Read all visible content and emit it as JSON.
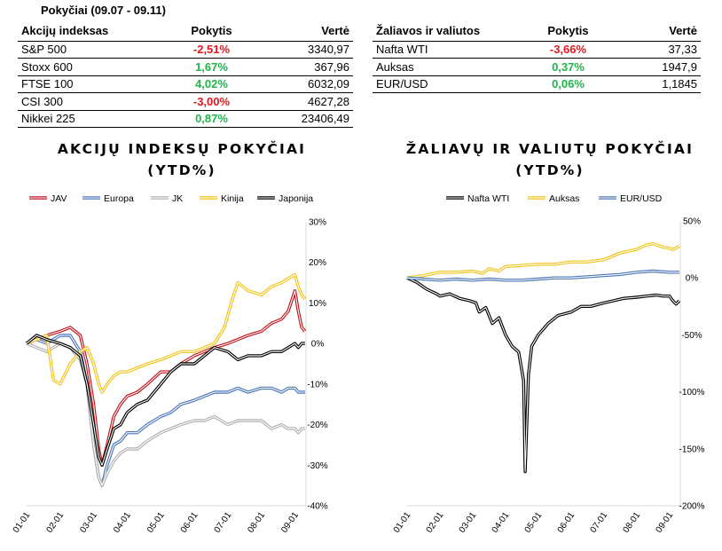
{
  "header": {
    "week_title": "Pokyčiai (09.07 - 09.11)"
  },
  "indices_table": {
    "headers": [
      "Akcijų indeksas",
      "Pokytis",
      "Vertė"
    ],
    "rows": [
      {
        "name": "S&P 500",
        "change": "-2,51%",
        "value": "3340,97",
        "sign": "neg"
      },
      {
        "name": "Stoxx 600",
        "change": "1,67%",
        "value": "367,96",
        "sign": "pos"
      },
      {
        "name": "FTSE 100",
        "change": "4,02%",
        "value": "6032,09",
        "sign": "pos"
      },
      {
        "name": "CSI 300",
        "change": "-3,00%",
        "value": "4627,28",
        "sign": "neg"
      },
      {
        "name": "Nikkei 225",
        "change": "0,87%",
        "value": "23406,49",
        "sign": "pos"
      }
    ]
  },
  "commodities_table": {
    "headers": [
      "Žaliavos ir valiutos",
      "Pokytis",
      "Vertė"
    ],
    "rows": [
      {
        "name": "Nafta WTI",
        "change": "-3,66%",
        "value": "37,33",
        "sign": "neg"
      },
      {
        "name": "Auksas",
        "change": "0,37%",
        "value": "1947,9",
        "sign": "pos"
      },
      {
        "name": "EUR/USD",
        "change": "0,06%",
        "value": "1,1845",
        "sign": "pos"
      }
    ]
  },
  "colors": {
    "negative": "#e8161f",
    "positive": "#1fb54a"
  },
  "chart_data": [
    {
      "type": "line",
      "title": "AKCIJŲ INDEKSŲ POKYČIAI",
      "subtitle": "(YTD%)",
      "legend_position": "top",
      "grid": false,
      "x_tick_labels": [
        "01-01",
        "02-01",
        "03-01",
        "04-01",
        "05-01",
        "06-01",
        "07-01",
        "08-01",
        "09-01"
      ],
      "x_range": [
        0,
        8.33
      ],
      "y_ticks": [
        30,
        20,
        10,
        0,
        -10,
        -20,
        -30,
        -40
      ],
      "y_tick_labels": [
        "30%",
        "20%",
        "10%",
        "0%",
        "-10%",
        "-20%",
        "-30%",
        "-40%"
      ],
      "ylim": [
        -40,
        30
      ],
      "series": [
        {
          "name": "JAV",
          "color": "#c0141c",
          "x": [
            0,
            0.3,
            0.6,
            1.0,
            1.3,
            1.6,
            1.8,
            2.0,
            2.15,
            2.25,
            2.4,
            2.6,
            2.8,
            3.0,
            3.3,
            3.6,
            4.0,
            4.3,
            4.6,
            5.0,
            5.3,
            5.6,
            6.0,
            6.3,
            6.6,
            7.0,
            7.3,
            7.6,
            7.8,
            8.0,
            8.1,
            8.2,
            8.3
          ],
          "y": [
            0,
            1,
            2,
            3,
            4,
            2,
            -5,
            -15,
            -26,
            -30,
            -25,
            -18,
            -15,
            -13,
            -12,
            -10,
            -7,
            -7,
            -5,
            -3,
            -2,
            -1,
            0,
            1,
            2,
            3,
            5,
            6,
            8,
            13,
            8,
            4,
            3
          ]
        },
        {
          "name": "Europa",
          "color": "#4a76b8",
          "x": [
            0,
            0.3,
            0.6,
            1.0,
            1.3,
            1.6,
            1.8,
            2.0,
            2.15,
            2.25,
            2.4,
            2.6,
            2.8,
            3.0,
            3.3,
            3.6,
            4.0,
            4.3,
            4.6,
            5.0,
            5.3,
            5.6,
            6.0,
            6.3,
            6.6,
            7.0,
            7.3,
            7.6,
            7.8,
            8.0,
            8.1,
            8.2,
            8.3
          ],
          "y": [
            0,
            1,
            0,
            2,
            2,
            -2,
            -10,
            -25,
            -33,
            -35,
            -30,
            -25,
            -24,
            -22,
            -22,
            -20,
            -18,
            -17,
            -15,
            -14,
            -13,
            -12,
            -12,
            -11,
            -12,
            -11,
            -11,
            -12,
            -11,
            -11,
            -12,
            -12,
            -12
          ]
        },
        {
          "name": "JK",
          "color": "#b0b0b0",
          "x": [
            0,
            0.3,
            0.6,
            1.0,
            1.3,
            1.6,
            1.8,
            2.0,
            2.15,
            2.25,
            2.4,
            2.6,
            2.8,
            3.0,
            3.3,
            3.6,
            4.0,
            4.3,
            4.6,
            5.0,
            5.3,
            5.6,
            6.0,
            6.3,
            6.6,
            7.0,
            7.3,
            7.6,
            7.8,
            8.0,
            8.1,
            8.2,
            8.3
          ],
          "y": [
            0,
            -1,
            -2,
            0,
            -1,
            -4,
            -10,
            -25,
            -33,
            -35,
            -32,
            -29,
            -27,
            -26,
            -26,
            -24,
            -22,
            -21,
            -20,
            -19,
            -19,
            -18,
            -20,
            -19,
            -19,
            -19,
            -21,
            -20,
            -21,
            -21,
            -22,
            -21,
            -21
          ]
        },
        {
          "name": "Kinija",
          "color": "#f2c418",
          "x": [
            0,
            0.3,
            0.6,
            0.8,
            1.0,
            1.3,
            1.6,
            1.8,
            2.0,
            2.15,
            2.25,
            2.4,
            2.6,
            2.8,
            3.0,
            3.3,
            3.6,
            4.0,
            4.3,
            4.6,
            5.0,
            5.3,
            5.6,
            5.9,
            6.1,
            6.3,
            6.6,
            7.0,
            7.3,
            7.6,
            7.8,
            8.0,
            8.1,
            8.2,
            8.3
          ],
          "y": [
            0,
            1,
            2,
            -9,
            -10,
            -5,
            -2,
            -1,
            -5,
            -10,
            -12,
            -10,
            -8,
            -7,
            -7,
            -6,
            -5,
            -4,
            -3,
            -2,
            -2,
            -1,
            0,
            4,
            10,
            15,
            13,
            12,
            14,
            15,
            16,
            17,
            14,
            12,
            11
          ]
        },
        {
          "name": "Japonija",
          "color": "#000000",
          "x": [
            0,
            0.3,
            0.6,
            1.0,
            1.3,
            1.6,
            1.8,
            2.0,
            2.15,
            2.25,
            2.4,
            2.6,
            2.8,
            3.0,
            3.3,
            3.6,
            4.0,
            4.3,
            4.6,
            5.0,
            5.3,
            5.6,
            6.0,
            6.3,
            6.6,
            7.0,
            7.3,
            7.6,
            7.8,
            8.0,
            8.1,
            8.2,
            8.3
          ],
          "y": [
            0,
            2,
            1,
            0,
            -1,
            -3,
            -10,
            -20,
            -28,
            -30,
            -26,
            -21,
            -20,
            -17,
            -15,
            -14,
            -10,
            -7,
            -5,
            -5,
            -3,
            -1,
            -2,
            -4,
            -3,
            -3,
            -2,
            -2,
            -1,
            0,
            -1,
            0,
            0
          ]
        }
      ]
    },
    {
      "type": "line",
      "title": "ŽALIAVŲ IR VALIUTŲ POKYČIAI",
      "subtitle": "(YTD%)",
      "legend_position": "top",
      "grid": false,
      "x_tick_labels": [
        "01-01",
        "02-01",
        "03-01",
        "04-01",
        "05-01",
        "06-01",
        "07-01",
        "08-01",
        "09-01"
      ],
      "x_range": [
        0,
        8.33
      ],
      "y_ticks": [
        50,
        0,
        -50,
        -100,
        -150,
        -200
      ],
      "y_tick_labels": [
        "50%",
        "0%",
        "-50%",
        "-100%",
        "-150%",
        "-200%"
      ],
      "ylim": [
        -200,
        50
      ],
      "series": [
        {
          "name": "Nafta WTI",
          "color": "#000000",
          "x": [
            0,
            0.3,
            0.6,
            0.9,
            1.0,
            1.3,
            1.6,
            1.9,
            2.1,
            2.2,
            2.4,
            2.6,
            2.8,
            3.0,
            3.2,
            3.4,
            3.55,
            3.6,
            3.7,
            3.8,
            4.0,
            4.3,
            4.6,
            5.0,
            5.3,
            5.6,
            6.0,
            6.3,
            6.6,
            7.0,
            7.3,
            7.6,
            7.8,
            8.0,
            8.1,
            8.2,
            8.3
          ],
          "y": [
            0,
            -4,
            -10,
            -14,
            -16,
            -14,
            -18,
            -20,
            -22,
            -30,
            -26,
            -40,
            -35,
            -50,
            -60,
            -65,
            -90,
            -170,
            -85,
            -60,
            -50,
            -40,
            -33,
            -30,
            -25,
            -25,
            -22,
            -20,
            -18,
            -17,
            -16,
            -15,
            -16,
            -16,
            -20,
            -23,
            -20
          ]
        },
        {
          "name": "Auksas",
          "color": "#f2c418",
          "x": [
            0,
            0.5,
            1.0,
            1.5,
            2.0,
            2.3,
            2.5,
            2.8,
            3.0,
            3.5,
            4.0,
            4.5,
            5.0,
            5.5,
            6.0,
            6.5,
            7.0,
            7.3,
            7.5,
            7.8,
            8.0,
            8.1,
            8.2,
            8.3
          ],
          "y": [
            0,
            2,
            5,
            5,
            6,
            4,
            8,
            6,
            10,
            11,
            12,
            12,
            14,
            14,
            16,
            22,
            25,
            29,
            30,
            27,
            26,
            25,
            26,
            28
          ]
        },
        {
          "name": "EUR/USD",
          "color": "#4a76b8",
          "x": [
            0,
            0.5,
            1.0,
            1.5,
            2.0,
            2.5,
            3.0,
            3.5,
            4.0,
            4.5,
            5.0,
            5.5,
            6.0,
            6.5,
            7.0,
            7.5,
            8.0,
            8.3
          ],
          "y": [
            0,
            -1,
            -2,
            -1,
            -2,
            -1,
            -2,
            -2,
            -1,
            0,
            0,
            1,
            2,
            3,
            5,
            6,
            5,
            5
          ]
        }
      ]
    }
  ]
}
